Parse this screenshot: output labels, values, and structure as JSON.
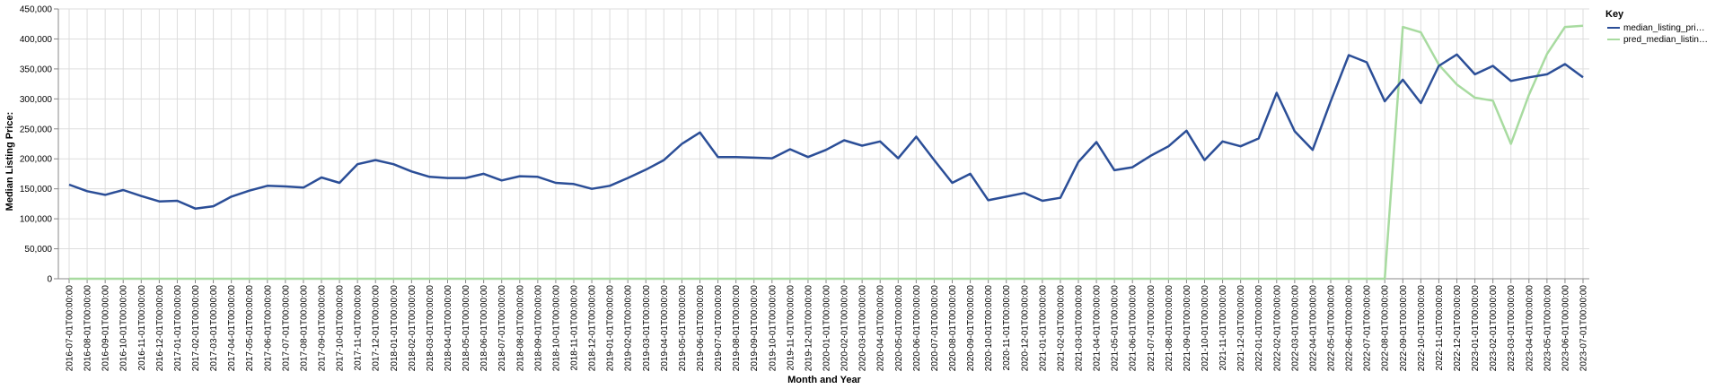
{
  "chart_data": {
    "type": "line",
    "xlabel": "Month and Year",
    "ylabel": "Median Listing Price:",
    "ylim": [
      0,
      450000
    ],
    "yticks": [
      0,
      50000,
      100000,
      150000,
      200000,
      250000,
      300000,
      350000,
      400000,
      450000
    ],
    "ytick_labels": [
      "0",
      "50,000",
      "100,000",
      "150,000",
      "200,000",
      "250,000",
      "300,000",
      "350,000",
      "400,000",
      "450,000"
    ],
    "grid": true,
    "legend": {
      "title": "Key",
      "placement": "right",
      "labels": [
        "median_listing_pri…",
        "pred_median_listin…"
      ]
    },
    "x": [
      "2016-07-01T00:00:00",
      "2016-08-01T00:00:00",
      "2016-09-01T00:00:00",
      "2016-10-01T00:00:00",
      "2016-11-01T00:00:00",
      "2016-12-01T00:00:00",
      "2017-01-01T00:00:00",
      "2017-02-01T00:00:00",
      "2017-03-01T00:00:00",
      "2017-04-01T00:00:00",
      "2017-05-01T00:00:00",
      "2017-06-01T00:00:00",
      "2017-07-01T00:00:00",
      "2017-08-01T00:00:00",
      "2017-09-01T00:00:00",
      "2017-10-01T00:00:00",
      "2017-11-01T00:00:00",
      "2017-12-01T00:00:00",
      "2018-01-01T00:00:00",
      "2018-02-01T00:00:00",
      "2018-03-01T00:00:00",
      "2018-04-01T00:00:00",
      "2018-05-01T00:00:00",
      "2018-06-01T00:00:00",
      "2018-07-01T00:00:00",
      "2018-08-01T00:00:00",
      "2018-09-01T00:00:00",
      "2018-10-01T00:00:00",
      "2018-11-01T00:00:00",
      "2018-12-01T00:00:00",
      "2019-01-01T00:00:00",
      "2019-02-01T00:00:00",
      "2019-03-01T00:00:00",
      "2019-04-01T00:00:00",
      "2019-05-01T00:00:00",
      "2019-06-01T00:00:00",
      "2019-07-01T00:00:00",
      "2019-08-01T00:00:00",
      "2019-09-01T00:00:00",
      "2019-10-01T00:00:00",
      "2019-11-01T00:00:00",
      "2019-12-01T00:00:00",
      "2020-01-01T00:00:00",
      "2020-02-01T00:00:00",
      "2020-03-01T00:00:00",
      "2020-04-01T00:00:00",
      "2020-05-01T00:00:00",
      "2020-06-01T00:00:00",
      "2020-07-01T00:00:00",
      "2020-08-01T00:00:00",
      "2020-09-01T00:00:00",
      "2020-10-01T00:00:00",
      "2020-11-01T00:00:00",
      "2020-12-01T00:00:00",
      "2021-01-01T00:00:00",
      "2021-02-01T00:00:00",
      "2021-03-01T00:00:00",
      "2021-04-01T00:00:00",
      "2021-05-01T00:00:00",
      "2021-06-01T00:00:00",
      "2021-07-01T00:00:00",
      "2021-08-01T00:00:00",
      "2021-09-01T00:00:00",
      "2021-10-01T00:00:00",
      "2021-11-01T00:00:00",
      "2021-12-01T00:00:00",
      "2022-01-01T00:00:00",
      "2022-02-01T00:00:00",
      "2022-03-01T00:00:00",
      "2022-04-01T00:00:00",
      "2022-05-01T00:00:00",
      "2022-06-01T00:00:00",
      "2022-07-01T00:00:00",
      "2022-08-01T00:00:00",
      "2022-09-01T00:00:00",
      "2022-10-01T00:00:00",
      "2022-11-01T00:00:00",
      "2022-12-01T00:00:00",
      "2023-01-01T00:00:00",
      "2023-02-01T00:00:00",
      "2023-03-01T00:00:00",
      "2023-04-01T00:00:00",
      "2023-05-01T00:00:00",
      "2023-06-01T00:00:00",
      "2023-07-01T00:00:00"
    ],
    "series": [
      {
        "name": "median_listing_pri…",
        "color": "#2b4e97",
        "values": [
          157000,
          146000,
          140000,
          148000,
          138000,
          129000,
          130000,
          117000,
          121000,
          137000,
          147000,
          155000,
          154000,
          152000,
          169000,
          160000,
          191000,
          198000,
          191000,
          179000,
          170000,
          168000,
          168000,
          175000,
          164000,
          171000,
          170000,
          160000,
          158000,
          150000,
          155000,
          168000,
          182000,
          198000,
          225000,
          244000,
          203000,
          203000,
          202000,
          201000,
          216000,
          203000,
          215000,
          231000,
          222000,
          229000,
          201000,
          237000,
          198000,
          160000,
          175000,
          131000,
          137000,
          143000,
          130000,
          135000,
          195000,
          228000,
          181000,
          186000,
          205000,
          221000,
          247000,
          198000,
          229000,
          221000,
          234000,
          310000,
          246000,
          215000,
          296000,
          373000,
          361000,
          296000,
          332000,
          293000,
          355000,
          374000,
          341000,
          355000,
          330000,
          336000,
          341000,
          358000,
          336000
        ]
      },
      {
        "name": "pred_median_listin…",
        "color": "#a8dba0",
        "values": [
          0,
          0,
          0,
          0,
          0,
          0,
          0,
          0,
          0,
          0,
          0,
          0,
          0,
          0,
          0,
          0,
          0,
          0,
          0,
          0,
          0,
          0,
          0,
          0,
          0,
          0,
          0,
          0,
          0,
          0,
          0,
          0,
          0,
          0,
          0,
          0,
          0,
          0,
          0,
          0,
          0,
          0,
          0,
          0,
          0,
          0,
          0,
          0,
          0,
          0,
          0,
          0,
          0,
          0,
          0,
          0,
          0,
          0,
          0,
          0,
          0,
          0,
          0,
          0,
          0,
          0,
          0,
          0,
          0,
          0,
          0,
          0,
          0,
          0,
          420000,
          411000,
          357000,
          324000,
          302000,
          297000,
          225000,
          307000,
          375000,
          420000,
          422000
        ]
      }
    ]
  }
}
